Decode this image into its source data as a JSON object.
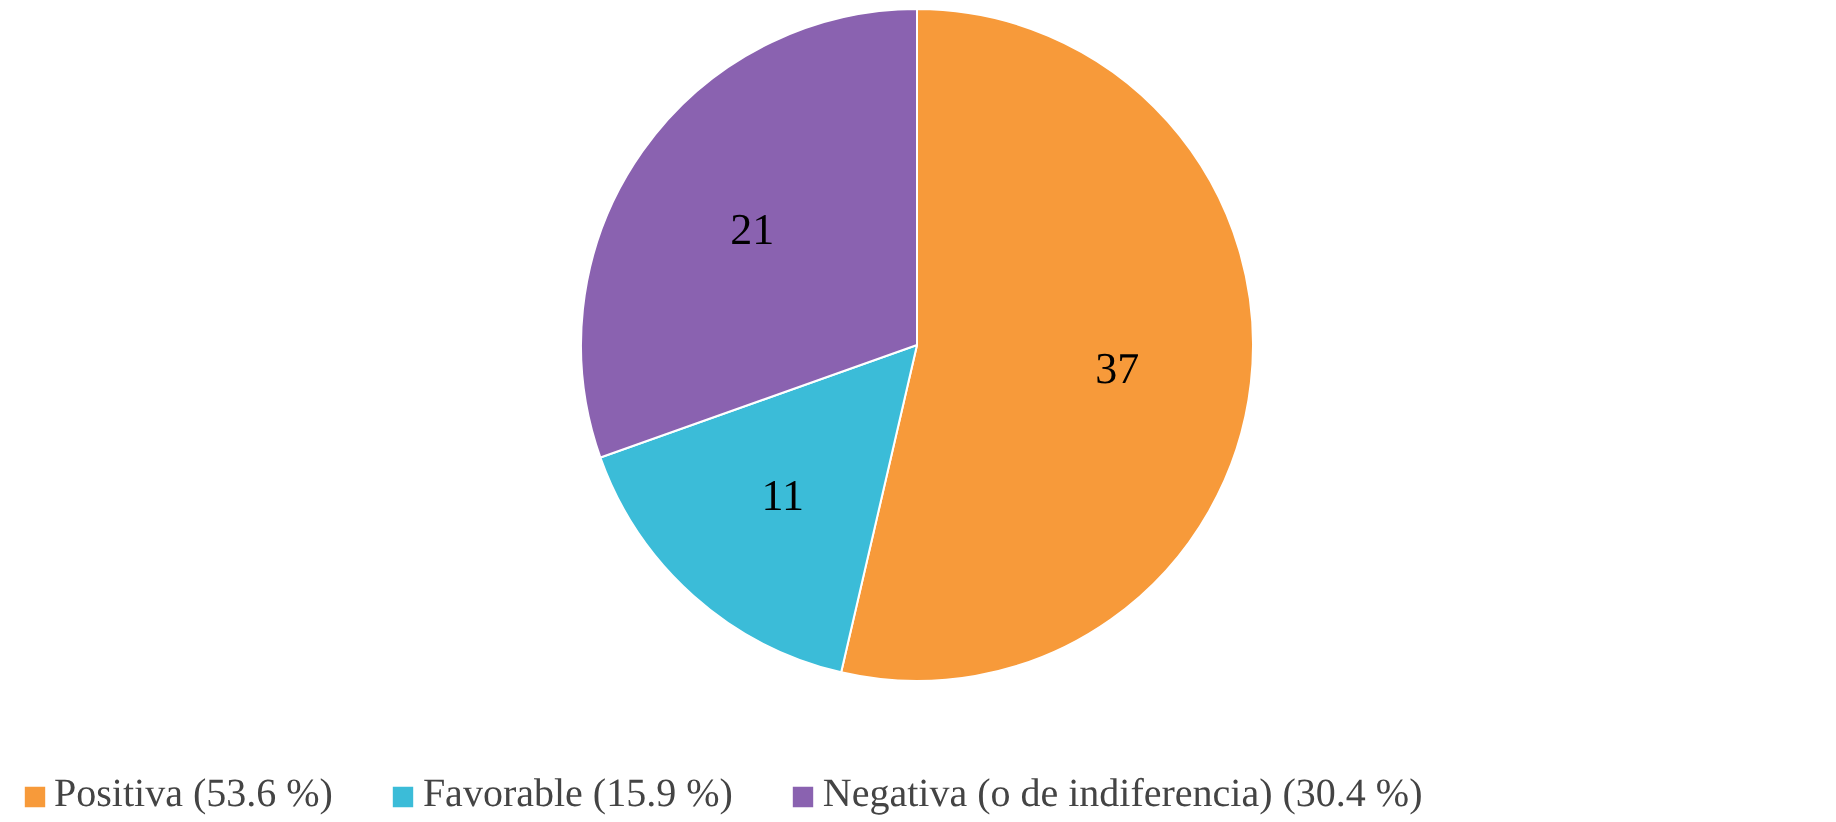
{
  "chart_data": {
    "type": "pie",
    "categories": [
      "Positiva (53.6 %)",
      "Favorable (15.9 %)",
      "Negativa (o de indiferencia) (30.4 %)"
    ],
    "values": [
      37,
      11,
      21
    ],
    "colors": [
      "#f79a3a",
      "#3bbcd8",
      "#8a62b0"
    ],
    "data_labels": true,
    "legend": "bottom"
  }
}
